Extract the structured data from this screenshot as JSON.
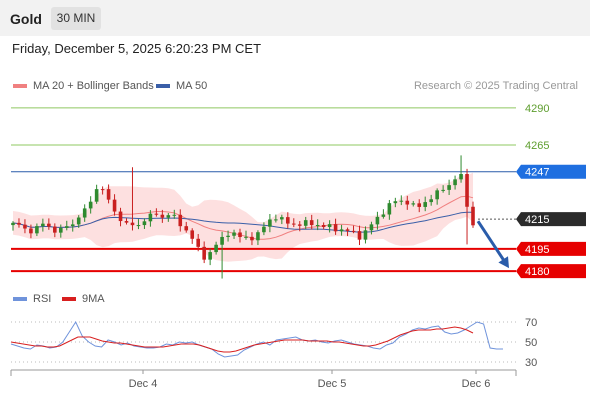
{
  "header": {
    "symbol": "Gold",
    "timeframe": "30 MIN",
    "datetime": "Friday, December 5, 2025 6:20:23 PM CET"
  },
  "legend": {
    "ma20_bb": "MA 20 + Bollinger Bands",
    "ma50": "MA 50",
    "credit": "Research © 2025 Trading Central",
    "rsi": "RSI",
    "rsi_ma": "9MA"
  },
  "colors": {
    "up": "#2f8a2f",
    "down": "#c92020",
    "ma20": "#f08080",
    "ma50": "#3a5fa8",
    "band_fill": "#fcd5d5",
    "support": "#e60000",
    "resistance": "#8fc862",
    "pivot": "#2a5caa",
    "current": "#333333",
    "rsi": "#6f93db",
    "rsi_ma": "#d81f1f"
  },
  "chart_data": [
    {
      "type": "candlestick",
      "title": "",
      "x_ticks": [
        "Dec 4",
        "Dec 5",
        "Dec 6"
      ],
      "ylim": [
        4172,
        4298
      ],
      "levels": [
        {
          "label": "4290",
          "value": 4290,
          "kind": "resistance"
        },
        {
          "label": "4265",
          "value": 4265,
          "kind": "resistance"
        },
        {
          "label": "4247",
          "value": 4247,
          "kind": "pivot"
        },
        {
          "label": "4215",
          "value": 4215,
          "kind": "current"
        },
        {
          "label": "4195",
          "value": 4195,
          "kind": "support"
        },
        {
          "label": "4180",
          "value": 4180,
          "kind": "support"
        }
      ],
      "forecast": {
        "from": 4215,
        "to": 4180,
        "direction": "down"
      }
    },
    {
      "type": "line",
      "title": "",
      "series": [
        {
          "name": "RSI",
          "values": [
            48,
            46,
            44,
            43,
            47,
            46,
            44,
            45,
            50,
            60,
            70,
            56,
            50,
            46,
            45,
            52,
            50,
            47,
            49,
            46,
            45,
            44,
            44,
            45,
            48,
            47,
            50,
            49,
            50,
            47,
            45,
            43,
            38,
            35,
            36,
            37,
            42,
            45,
            48,
            50,
            47,
            52,
            53,
            54,
            55,
            52,
            51,
            52,
            50,
            49,
            51,
            52,
            50,
            48,
            47,
            46,
            44,
            43,
            47,
            49,
            55,
            58,
            62,
            64,
            63,
            65,
            66,
            60,
            58,
            59,
            62,
            66,
            70,
            68,
            44,
            43,
            43
          ]
        },
        {
          "name": "9MA",
          "values": [
            50,
            49,
            48,
            47,
            46,
            46,
            45,
            45,
            46,
            49,
            52,
            55,
            55,
            55,
            53,
            51,
            50,
            49,
            49,
            48,
            47,
            46,
            45,
            45,
            45,
            45,
            46,
            47,
            48,
            48,
            48,
            47,
            45,
            43,
            41,
            40,
            40,
            41,
            43,
            45,
            47,
            48,
            49,
            50,
            51,
            52,
            52,
            52,
            52,
            51,
            51,
            51,
            51,
            50,
            50,
            49,
            48,
            47,
            46,
            46,
            47,
            49,
            51,
            54,
            57,
            59,
            61,
            62,
            62,
            62,
            63,
            63,
            64,
            65,
            64,
            62,
            59
          ]
        }
      ],
      "ylim": [
        22,
        80
      ],
      "y_ticks": [
        "70",
        "50",
        "30"
      ]
    }
  ]
}
